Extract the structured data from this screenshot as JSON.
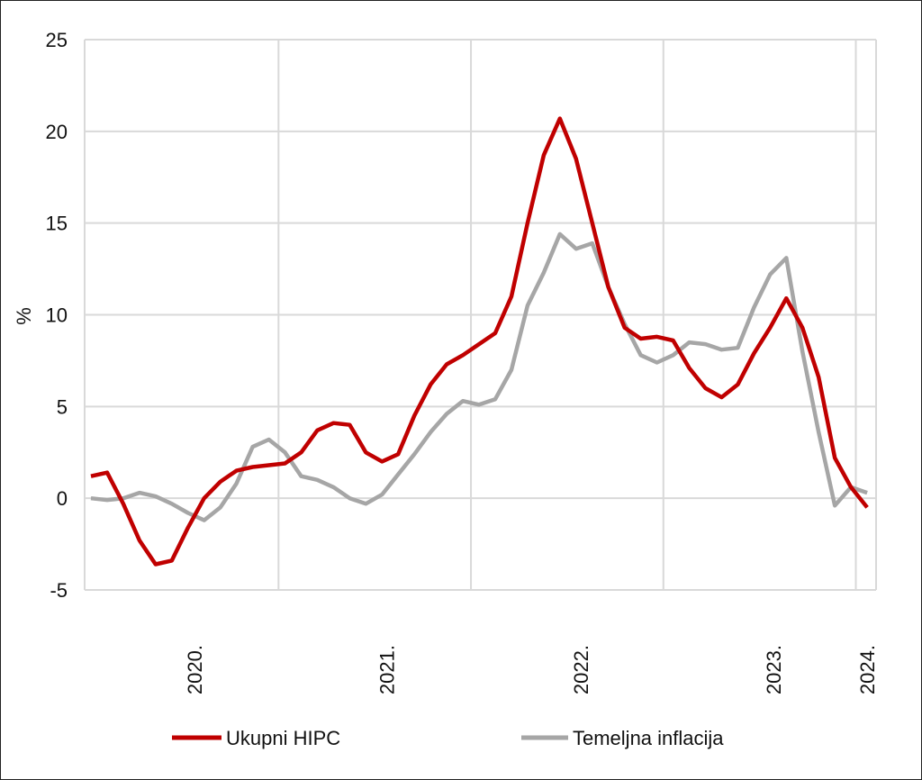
{
  "chart_data": {
    "type": "line",
    "title": "",
    "xlabel": "",
    "ylabel": "%",
    "ylim": [
      -5,
      25
    ],
    "yticks": [
      -5,
      0,
      5,
      10,
      15,
      20,
      25
    ],
    "grid": true,
    "x_tick_labels": [
      {
        "label": "2020.",
        "index": 6.4
      },
      {
        "label": "2021.",
        "index": 18.3
      },
      {
        "label": "2022.",
        "index": 30.3
      },
      {
        "label": "2023.",
        "index": 42.2
      },
      {
        "label": "2024.",
        "index": 48
      }
    ],
    "x_grid_indices": [
      11.6,
      23.5,
      35.4,
      47.3
    ],
    "legend_position": "bottom",
    "series": [
      {
        "name": "Ukupni HIPC",
        "color": "#c00000",
        "values": [
          1.2,
          1.4,
          -0.3,
          -2.3,
          -3.6,
          -3.4,
          -1.6,
          0,
          0.9,
          1.5,
          1.7,
          1.8,
          1.9,
          2.5,
          3.7,
          4.1,
          4.0,
          2.5,
          2.0,
          2.4,
          4.5,
          6.2,
          7.3,
          7.8,
          8.4,
          9.0,
          11,
          15,
          18.7,
          20.7,
          18.5,
          15,
          11.5,
          9.3,
          8.7,
          8.8,
          8.6,
          7.1,
          6.0,
          5.5,
          6.2,
          7.9,
          9.3,
          10.9,
          9.3,
          6.6,
          2.2,
          0.6,
          -0.5
        ]
      },
      {
        "name": "Temeljna inflacija",
        "color": "#a6a6a6",
        "values": [
          0,
          -0.1,
          0,
          0.3,
          0.1,
          -0.3,
          -0.8,
          -1.2,
          -0.5,
          0.8,
          2.8,
          3.2,
          2.5,
          1.2,
          1.0,
          0.6,
          0,
          -0.3,
          0.2,
          1.3,
          2.4,
          3.6,
          4.6,
          5.3,
          5.1,
          5.4,
          7,
          10.5,
          12.3,
          14.4,
          13.6,
          13.9,
          11.5,
          9.5,
          7.8,
          7.4,
          7.8,
          8.5,
          8.4,
          8.1,
          8.2,
          10.4,
          12.2,
          13.1,
          8.0,
          3.6,
          -0.4,
          0.6,
          0.3
        ]
      }
    ]
  }
}
